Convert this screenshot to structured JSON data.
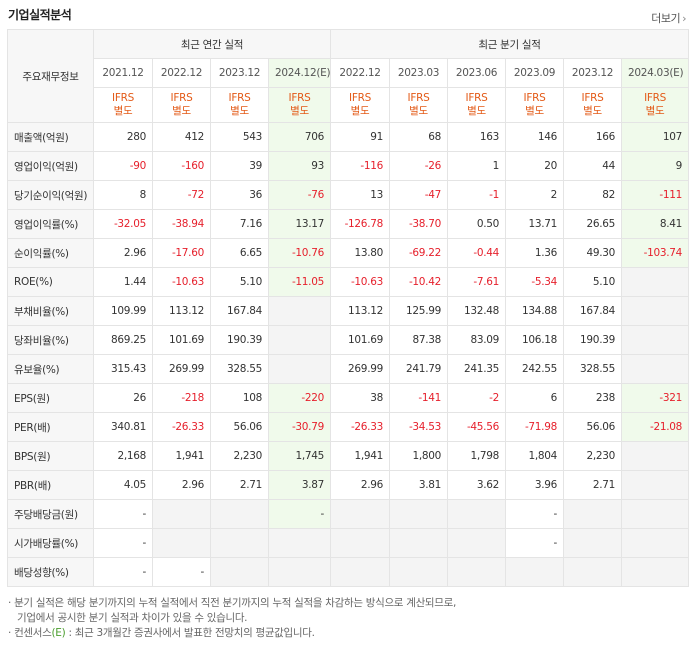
{
  "header": {
    "title": "기업실적분석",
    "more_label": "더보기",
    "more_icon": "chevron-right-icon"
  },
  "table": {
    "corner_label": "주요재무정보",
    "annual_label": "최근 연간 실적",
    "quarter_label": "최근 분기 실적",
    "periods": [
      "2021.12",
      "2022.12",
      "2023.12",
      "2024.12(E)",
      "2022.12",
      "2023.03",
      "2023.06",
      "2023.09",
      "2023.12",
      "2024.03(E)"
    ],
    "ifrs_line1": "IFRS",
    "ifrs_line2": "별도",
    "rows": [
      {
        "label": "매출액(억원)",
        "values": [
          "280",
          "412",
          "543",
          "706",
          "91",
          "68",
          "163",
          "146",
          "166",
          "107"
        ]
      },
      {
        "label": "영업이익(억원)",
        "values": [
          "-90",
          "-160",
          "39",
          "93",
          "-116",
          "-26",
          "1",
          "20",
          "44",
          "9"
        ]
      },
      {
        "label": "당기순이익(억원)",
        "values": [
          "8",
          "-72",
          "36",
          "-76",
          "13",
          "-47",
          "-1",
          "2",
          "82",
          "-111"
        ]
      },
      {
        "label": "영업이익률(%)",
        "values": [
          "-32.05",
          "-38.94",
          "7.16",
          "13.17",
          "-126.78",
          "-38.70",
          "0.50",
          "13.71",
          "26.65",
          "8.41"
        ]
      },
      {
        "label": "순이익률(%)",
        "values": [
          "2.96",
          "-17.60",
          "6.65",
          "-10.76",
          "13.80",
          "-69.22",
          "-0.44",
          "1.36",
          "49.30",
          "-103.74"
        ]
      },
      {
        "label": "ROE(%)",
        "values": [
          "1.44",
          "-10.63",
          "5.10",
          "-11.05",
          "-10.63",
          "-10.42",
          "-7.61",
          "-5.34",
          "5.10",
          ""
        ]
      },
      {
        "label": "부채비율(%)",
        "values": [
          "109.99",
          "113.12",
          "167.84",
          "",
          "113.12",
          "125.99",
          "132.48",
          "134.88",
          "167.84",
          ""
        ]
      },
      {
        "label": "당좌비율(%)",
        "values": [
          "869.25",
          "101.69",
          "190.39",
          "",
          "101.69",
          "87.38",
          "83.09",
          "106.18",
          "190.39",
          ""
        ]
      },
      {
        "label": "유보율(%)",
        "values": [
          "315.43",
          "269.99",
          "328.55",
          "",
          "269.99",
          "241.79",
          "241.35",
          "242.55",
          "328.55",
          ""
        ]
      },
      {
        "label": "EPS(원)",
        "values": [
          "26",
          "-218",
          "108",
          "-220",
          "38",
          "-141",
          "-2",
          "6",
          "238",
          "-321"
        ]
      },
      {
        "label": "PER(배)",
        "values": [
          "340.81",
          "-26.33",
          "56.06",
          "-30.79",
          "-26.33",
          "-34.53",
          "-45.56",
          "-71.98",
          "56.06",
          "-21.08"
        ]
      },
      {
        "label": "BPS(원)",
        "values": [
          "2,168",
          "1,941",
          "2,230",
          "1,745",
          "1,941",
          "1,800",
          "1,798",
          "1,804",
          "2,230",
          ""
        ]
      },
      {
        "label": "PBR(배)",
        "values": [
          "4.05",
          "2.96",
          "2.71",
          "3.87",
          "2.96",
          "3.81",
          "3.62",
          "3.96",
          "2.71",
          ""
        ]
      },
      {
        "label": "주당배당금(원)",
        "values": [
          "-",
          "",
          "",
          "-",
          "",
          "",
          "",
          "-",
          "",
          ""
        ]
      },
      {
        "label": "시가배당률(%)",
        "values": [
          "-",
          "",
          "",
          "",
          "",
          "",
          "",
          "-",
          "",
          ""
        ]
      },
      {
        "label": "배당성향(%)",
        "values": [
          "-",
          "-",
          "",
          "",
          "",
          "",
          "",
          "",
          "",
          ""
        ]
      }
    ]
  },
  "notes": {
    "line1": "· 분기 실적은 해당 분기까지의 누적 실적에서 직전 분기까지의 누적 실적을 차감하는 방식으로 계산되므로,",
    "line2": "기업에서 공시한 분기 실적과 차이가 있을 수 있습니다.",
    "line3_prefix": "· 컨센서스",
    "line3_tag": "(E)",
    "line3_rest": ": 최근 3개월간 증권사에서 발표한 전망치의 평균값입니다."
  },
  "colors": {
    "negative": "#e6202c",
    "ifrs": "#e35a17",
    "estimate_bg": "#f0faeb",
    "label_bg": "#f7f7f7"
  }
}
